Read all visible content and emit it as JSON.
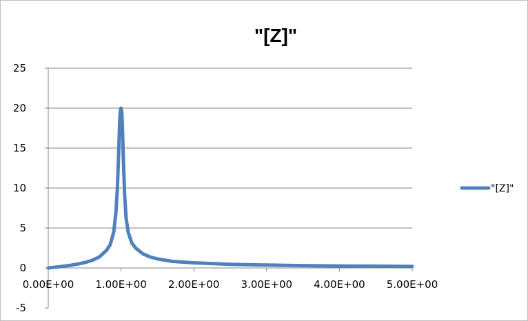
{
  "chart_data": {
    "type": "line",
    "title": "\"[Z]\"",
    "xlabel": "",
    "ylabel": "",
    "xlim": [
      0,
      5
    ],
    "ylim": [
      -5,
      25
    ],
    "x_ticks": [
      0,
      1,
      2,
      3,
      4,
      5
    ],
    "x_tick_labels": [
      "0.00E+00",
      "1.00E+00",
      "2.00E+00",
      "3.00E+00",
      "4.00E+00",
      "5.00E+00"
    ],
    "y_ticks": [
      25,
      20,
      15,
      10,
      5,
      0,
      -5
    ],
    "y_tick_labels": [
      "25",
      "20",
      "15",
      "10",
      "5",
      "0",
      "-5"
    ],
    "grid": true,
    "legend_position": "right",
    "colors": {
      "series": "#4f81bd",
      "grid": "#868686",
      "axis": "#868686",
      "frame": "#bfbfbf"
    },
    "series": [
      {
        "name": "\"[Z]\"",
        "x": [
          0.0,
          0.1,
          0.2,
          0.3,
          0.4,
          0.5,
          0.6,
          0.7,
          0.8,
          0.85,
          0.9,
          0.93,
          0.95,
          0.97,
          0.98,
          0.99,
          1.0,
          1.01,
          1.02,
          1.03,
          1.05,
          1.07,
          1.1,
          1.15,
          1.2,
          1.3,
          1.4,
          1.5,
          1.7,
          2.0,
          2.5,
          3.0,
          3.5,
          4.0,
          4.5,
          5.0
        ],
        "y": [
          0.0,
          0.1,
          0.21,
          0.33,
          0.48,
          0.67,
          0.94,
          1.37,
          2.2,
          2.9,
          4.5,
          7.0,
          10.0,
          15.0,
          18.0,
          19.6,
          20.0,
          19.5,
          17.5,
          14.0,
          9.0,
          6.2,
          4.4,
          3.1,
          2.5,
          1.78,
          1.38,
          1.13,
          0.83,
          0.65,
          0.46,
          0.36,
          0.29,
          0.25,
          0.22,
          0.2
        ]
      }
    ]
  }
}
